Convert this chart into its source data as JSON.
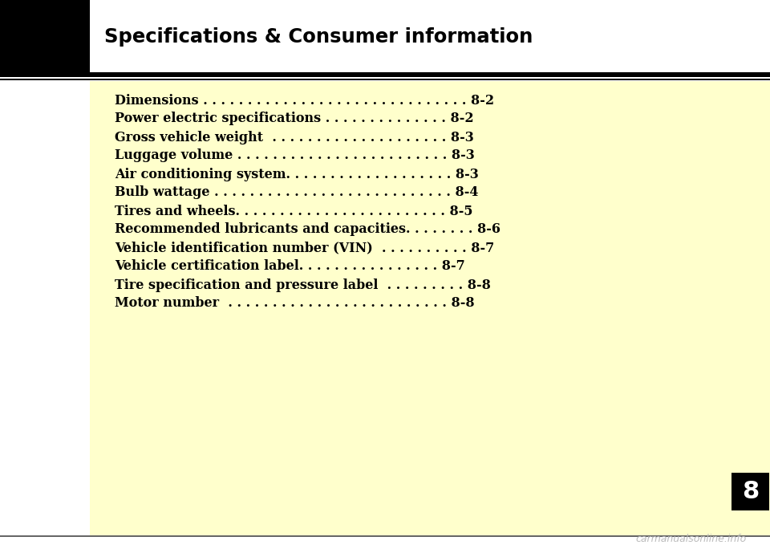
{
  "title": "Specifications & Consumer information",
  "header_bg": "#FFFFFF",
  "content_bg": "#FFFFCC",
  "title_color": "#000000",
  "title_fontsize": 17.5,
  "toc_entries": [
    {
      "text": "Dimensions",
      "dots": " . . . . . . . . . . . . . . . . . . . . . . . . . . . . . . ",
      "page": "8-2"
    },
    {
      "text": "Power electric specifications",
      "dots": " . . . . . . . . . . . . . . ",
      "page": "8-2"
    },
    {
      "text": "Gross vehicle weight ",
      "dots": " . . . . . . . . . . . . . . . . . . . . ",
      "page": "8-3"
    },
    {
      "text": "Luggage volume",
      "dots": " . . . . . . . . . . . . . . . . . . . . . . . . ",
      "page": "8-3"
    },
    {
      "text": "Air conditioning system",
      "dots": ". . . . . . . . . . . . . . . . . . . ",
      "page": "8-3"
    },
    {
      "text": "Bulb wattage",
      "dots": " . . . . . . . . . . . . . . . . . . . . . . . . . . . ",
      "page": "8-4"
    },
    {
      "text": "Tires and wheels",
      "dots": ". . . . . . . . . . . . . . . . . . . . . . . . ",
      "page": "8-5"
    },
    {
      "text": "Recommended lubricants and capacities",
      "dots": ". . . . . . . . ",
      "page": "8-6"
    },
    {
      "text": "Vehicle identification number (VIN) ",
      "dots": " . . . . . . . . . . ",
      "page": "8-7"
    },
    {
      "text": "Vehicle certification label",
      "dots": ". . . . . . . . . . . . . . . . ",
      "page": "8-7"
    },
    {
      "text": "Tire specification and pressure label ",
      "dots": " . . . . . . . . . ",
      "page": "8-8"
    },
    {
      "text": "Motor number ",
      "dots": " . . . . . . . . . . . . . . . . . . . . . . . . . ",
      "page": "8-8"
    }
  ],
  "toc_text_color": "#000000",
  "toc_fontsize": 11.5,
  "section_number": "8",
  "section_number_color": "#FFFFFF",
  "section_number_bg": "#000000",
  "section_number_fontsize": 22,
  "watermark": "carmanualsonline.info",
  "watermark_color": "#BBBBBB",
  "watermark_fontsize": 9,
  "fig_width": 9.6,
  "fig_height": 6.89,
  "dpi": 100
}
